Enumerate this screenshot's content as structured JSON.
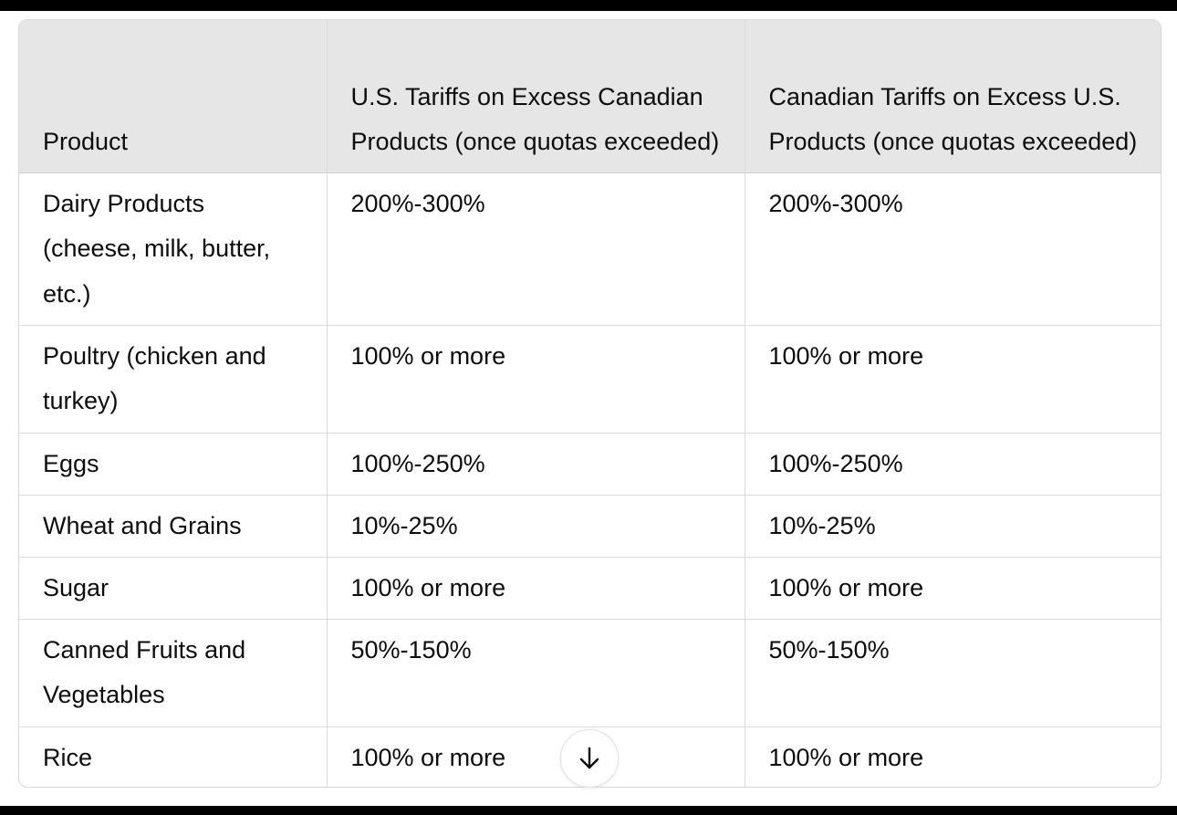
{
  "table": {
    "headers": [
      "Product",
      "U.S. Tariffs on Excess Canadian Products (once quotas exceeded)",
      "Canadian Tariffs on Excess U.S. Products (once quotas exceeded)"
    ],
    "rows": [
      [
        "Dairy Products (cheese, milk, butter, etc.)",
        "200%-300%",
        "200%-300%"
      ],
      [
        "Poultry (chicken and turkey)",
        "100% or more",
        "100% or more"
      ],
      [
        "Eggs",
        "100%-250%",
        "100%-250%"
      ],
      [
        "Wheat and Grains",
        "10%-25%",
        "10%-25%"
      ],
      [
        "Sugar",
        "100% or more",
        "100% or more"
      ],
      [
        "Canned Fruits and Vegetables",
        "50%-150%",
        "50%-150%"
      ],
      [
        "Rice",
        "100% or more",
        "100% or more"
      ]
    ]
  },
  "scroll_button": {
    "icon": "arrow-down-icon"
  },
  "colors": {
    "header_bg": "#e6e6e6",
    "border": "#dcdcdc",
    "text": "#0d0d0d"
  }
}
